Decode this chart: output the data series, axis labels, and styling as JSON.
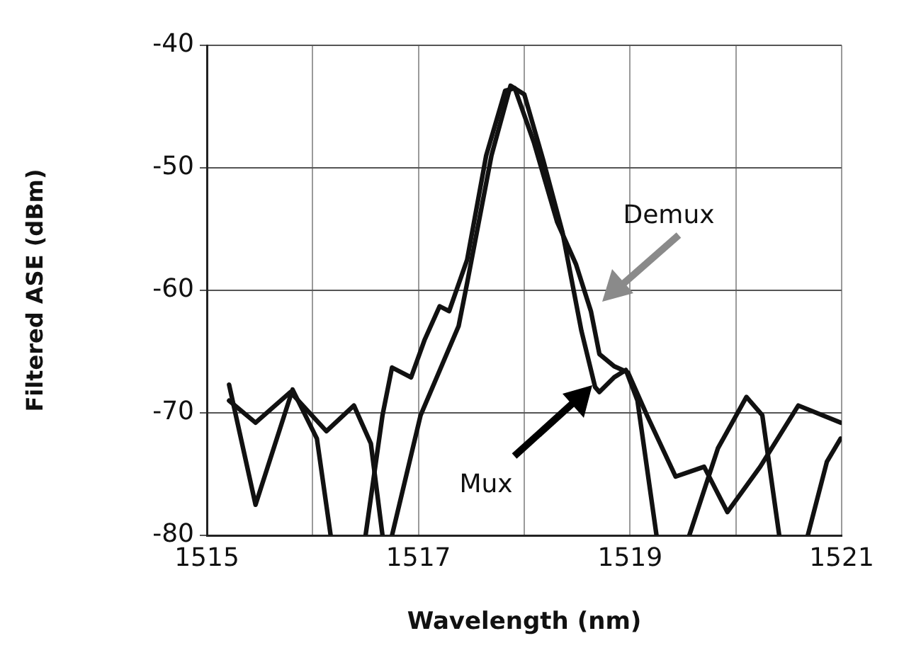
{
  "chart_data": {
    "type": "line",
    "xlabel": "Wavelength (nm)",
    "ylabel": "Filtered ASE (dBm)",
    "xlim": [
      1515,
      1521
    ],
    "xticks": [
      1515,
      {
        "value": 1516,
        "label": null
      },
      1517,
      {
        "value": 1518,
        "label": null
      },
      1519,
      {
        "value": 1520,
        "label": null
      },
      1521
    ],
    "ylim": [
      -80,
      -40
    ],
    "yticks": [
      -80,
      -70,
      -60,
      -50,
      -40
    ],
    "grid": true,
    "legend": false,
    "marker": "none",
    "line_style": "solid",
    "series": [
      {
        "color": "#111111",
        "x": [
          1515.21,
          1515.46,
          1515.81,
          1516.04,
          1516.17,
          1516.33,
          1516.5,
          1516.66,
          1516.75,
          1516.93,
          1517.06,
          1517.2,
          1517.29,
          1517.46,
          1517.64,
          1517.82,
          1517.91,
          1518.09,
          1518.31,
          1518.49,
          1518.63,
          1518.71,
          1518.85,
          1518.98,
          1519.16,
          1519.43,
          1519.7,
          1519.92,
          1520.23,
          1520.59,
          1520.99
        ],
        "values": [
          -67.7,
          -77.5,
          -68.1,
          -72.1,
          -80,
          null,
          -80,
          -70.2,
          -66.3,
          -67.1,
          -64,
          -61.3,
          -61.7,
          -57.5,
          -49,
          -43.7,
          -43.5,
          -47.9,
          -54.4,
          -57.9,
          -61.7,
          -65.2,
          -66.2,
          -66.7,
          -70.2,
          -75.2,
          -74.4,
          -78.1,
          -74.4,
          -69.4,
          -70.8
        ]
      },
      {
        "color": "#111111",
        "x": [
          1515.21,
          1515.46,
          1515.79,
          1516.13,
          1516.39,
          1516.55,
          1516.66,
          1516.7,
          1516.75,
          1517.02,
          1517.38,
          1517.46,
          1517.69,
          1517.87,
          1518.0,
          1518.18,
          1518.36,
          1518.54,
          1518.67,
          1518.71,
          1518.85,
          1518.96,
          1519.07,
          1519.25,
          1519.4,
          1519.56,
          1519.83,
          1520.1,
          1520.25,
          1520.41,
          1520.55,
          1520.68,
          1520.86,
          1520.99
        ],
        "values": [
          -69,
          -70.8,
          -68.3,
          -71.5,
          -69.4,
          -72.5,
          -80,
          null,
          -80,
          -70.2,
          -62.9,
          -59.4,
          -49,
          -43.3,
          -44,
          -49.4,
          -55.2,
          -63.3,
          -67.9,
          -68.3,
          -67.1,
          -66.5,
          -69,
          -80,
          null,
          -80,
          -72.9,
          -68.7,
          -70.2,
          -80,
          null,
          -80,
          -74,
          -72.1
        ]
      }
    ],
    "annotations": [
      "Demux",
      "Mux"
    ]
  }
}
